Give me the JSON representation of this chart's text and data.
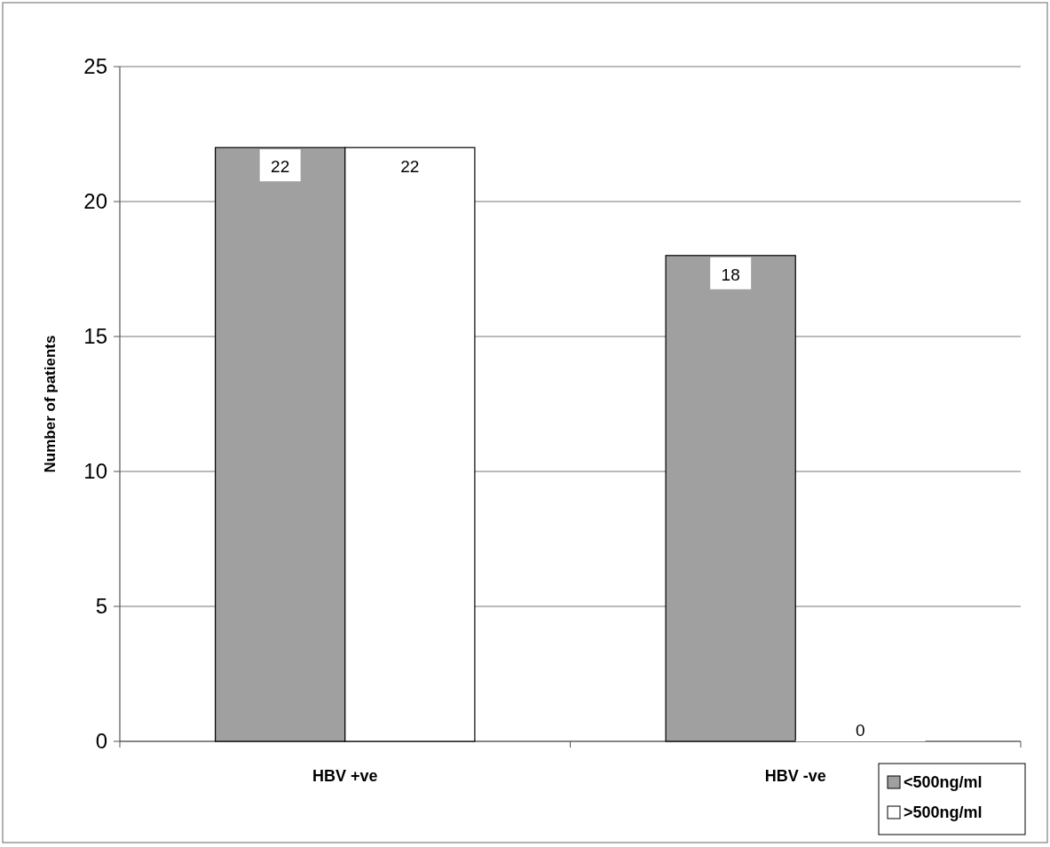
{
  "chart_data": {
    "type": "bar",
    "ylabel": "Number of patients",
    "categories": [
      "HBV +ve",
      "HBV -ve"
    ],
    "series": [
      {
        "name": "<500ng/ml",
        "color": "#a0a0a0",
        "values": [
          22,
          18
        ]
      },
      {
        "name": ">500ng/ml",
        "color": "#ffffff",
        "values": [
          22,
          0
        ]
      }
    ],
    "ylim": [
      0,
      25
    ],
    "yticks": [
      0,
      5,
      10,
      15,
      20,
      25
    ],
    "grid": "y",
    "legend": "bottom right",
    "data_labels": true
  }
}
